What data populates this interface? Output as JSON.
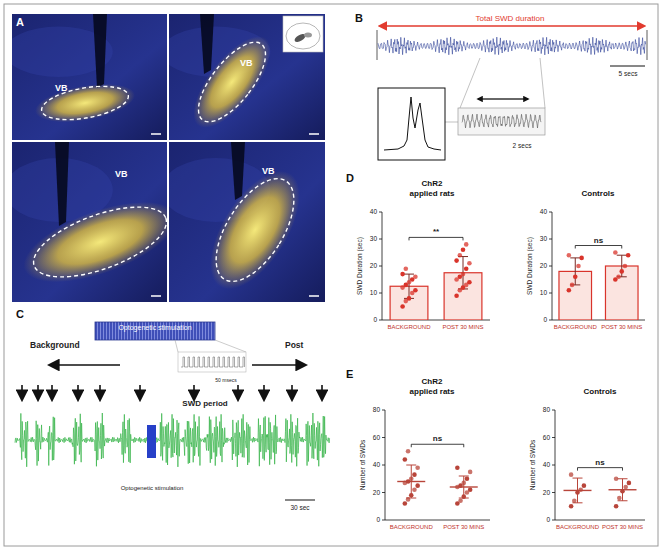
{
  "panel_labels": [
    "A",
    "B",
    "C",
    "D",
    "E"
  ],
  "panel_a": {
    "region_labels": [
      "VB",
      "VB",
      "VB",
      "VB"
    ]
  },
  "panel_b": {
    "title": "Total SWD duration",
    "scale_label": "5 secs",
    "inset_scale_label": "2 secs"
  },
  "panel_c": {
    "phases": [
      "Background",
      "Optogenetic stimulation",
      "Post"
    ],
    "pulse_scale_label": "50 msecs",
    "trace_label": "SWD period",
    "stimulus_label": "Optogenetic stimulation",
    "scale_label": "30 sec"
  },
  "chart_data": [
    {
      "type": "bar",
      "title": "ChR2\napplied rats",
      "ylabel": "SWD Duration (sec)",
      "categories": [
        "BACKGROUND",
        "POST 30 MINS"
      ],
      "values": [
        12.5,
        17.5
      ],
      "errors": [
        4.5,
        6
      ],
      "points": [
        [
          5,
          7,
          8,
          10,
          11,
          12,
          13,
          14,
          15,
          16,
          17,
          19
        ],
        [
          9,
          11,
          12,
          13,
          14,
          15,
          16,
          17,
          19,
          21,
          22,
          24,
          26,
          28
        ]
      ],
      "color": "#d9342b",
      "ylim": [
        0,
        40
      ],
      "yticks": [
        0,
        10,
        20,
        30,
        40
      ],
      "annotation": "**"
    },
    {
      "type": "bar",
      "title": "Controls",
      "ylabel": "SWD Duration (sec)",
      "categories": [
        "BACKGROUND",
        "POST 30 MINS"
      ],
      "values": [
        18,
        20
      ],
      "errors": [
        5,
        4
      ],
      "points": [
        [
          11,
          13,
          16,
          20,
          23,
          24
        ],
        [
          15,
          16,
          18,
          20,
          24,
          25
        ]
      ],
      "color": "#d9342b",
      "ylim": [
        0,
        40
      ],
      "yticks": [
        0,
        10,
        20,
        30,
        40
      ],
      "annotation": "ns"
    },
    {
      "type": "dot",
      "title": "ChR2\napplied rats",
      "ylabel": "Number of SWDs",
      "categories": [
        "BACKGROUND",
        "POST 30 MINS"
      ],
      "values": [
        28,
        24
      ],
      "errors": [
        12,
        8
      ],
      "points": [
        [
          12,
          15,
          18,
          22,
          25,
          27,
          28,
          30,
          33,
          38,
          44,
          50
        ],
        [
          12,
          14,
          17,
          20,
          22,
          24,
          25,
          27,
          30,
          35,
          38
        ]
      ],
      "color": "#b8453a",
      "ylim": [
        0,
        80
      ],
      "yticks": [
        0,
        20,
        40,
        60,
        80
      ],
      "annotation": "ns"
    },
    {
      "type": "dot",
      "title": "Controls",
      "ylabel": "Number of SWDs",
      "categories": [
        "BACKGROUND",
        "POST 30 MINS"
      ],
      "values": [
        21.5,
        22
      ],
      "errors": [
        9,
        8
      ],
      "points": [
        [
          10,
          14,
          20,
          22,
          25,
          33
        ],
        [
          10,
          16,
          21,
          24,
          27,
          30
        ]
      ],
      "color": "#b8453a",
      "ylim": [
        0,
        80
      ],
      "yticks": [
        0,
        20,
        40,
        60,
        80
      ],
      "annotation": "ns"
    }
  ]
}
